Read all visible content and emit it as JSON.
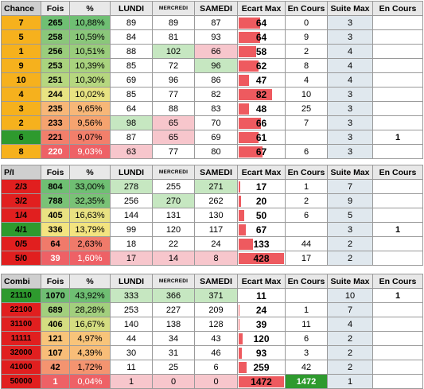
{
  "colors": {
    "accent_red": "#ee5a5f",
    "suite_max_bg": "#e0e8ee",
    "header_bg": "#e8e8e8"
  },
  "tables": [
    {
      "name": "chance",
      "headers": [
        "Chance",
        "Fois",
        "%",
        "LUNDI",
        "MERCREDI",
        "SAMEDI",
        "Ecart Max",
        "En Cours",
        "Suite Max",
        "En Cours"
      ],
      "rows": [
        {
          "label": "7",
          "fois": "265",
          "pct": "10,88%",
          "lundi": "89",
          "mercredi": "89",
          "samedi": "87",
          "ecart_max": "64",
          "ecart_level": 0.45,
          "en_cours": "0",
          "suite_max": "3",
          "en_cours2": ""
        },
        {
          "label": "5",
          "fois": "258",
          "pct": "10,59%",
          "lundi": "84",
          "mercredi": "81",
          "samedi": "93",
          "ecart_max": "64",
          "ecart_level": 0.45,
          "en_cours": "9",
          "suite_max": "3",
          "en_cours2": ""
        },
        {
          "label": "1",
          "fois": "256",
          "pct": "10,51%",
          "lundi": "88",
          "mercredi": "102",
          "samedi": "66",
          "ecart_max": "58",
          "ecart_level": 0.37,
          "en_cours": "2",
          "suite_max": "4",
          "en_cours2": ""
        },
        {
          "label": "9",
          "fois": "253",
          "pct": "10,39%",
          "lundi": "85",
          "mercredi": "72",
          "samedi": "96",
          "ecart_max": "62",
          "ecart_level": 0.42,
          "en_cours": "8",
          "suite_max": "4",
          "en_cours2": ""
        },
        {
          "label": "10",
          "fois": "251",
          "pct": "10,30%",
          "lundi": "69",
          "mercredi": "96",
          "samedi": "86",
          "ecart_max": "47",
          "ecart_level": 0.22,
          "en_cours": "4",
          "suite_max": "4",
          "en_cours2": ""
        },
        {
          "label": "4",
          "fois": "244",
          "pct": "10,02%",
          "lundi": "85",
          "mercredi": "77",
          "samedi": "82",
          "ecart_max": "82",
          "ecart_level": 0.72,
          "en_cours": "10",
          "suite_max": "3",
          "en_cours2": ""
        },
        {
          "label": "3",
          "fois": "235",
          "pct": "9,65%",
          "lundi": "64",
          "mercredi": "88",
          "samedi": "83",
          "ecart_max": "48",
          "ecart_level": 0.22,
          "en_cours": "25",
          "suite_max": "3",
          "en_cours2": ""
        },
        {
          "label": "2",
          "fois": "233",
          "pct": "9,56%",
          "lundi": "98",
          "mercredi": "65",
          "samedi": "70",
          "ecart_max": "66",
          "ecart_level": 0.48,
          "en_cours": "7",
          "suite_max": "3",
          "en_cours2": ""
        },
        {
          "label": "6",
          "fois": "221",
          "pct": "9,07%",
          "lundi": "87",
          "mercredi": "65",
          "samedi": "69",
          "ecart_max": "61",
          "ecart_level": 0.42,
          "en_cours": "",
          "suite_max": "3",
          "en_cours2": "1"
        },
        {
          "label": "8",
          "fois": "220",
          "pct": "9,03%",
          "lundi": "63",
          "mercredi": "77",
          "samedi": "80",
          "ecart_max": "67",
          "ecart_level": 0.5,
          "en_cours": "6",
          "suite_max": "3",
          "en_cours2": ""
        }
      ]
    },
    {
      "name": "pi",
      "headers": [
        "P/I",
        "Fois",
        "%",
        "LUNDI",
        "MERCREDI",
        "SAMEDI",
        "Ecart Max",
        "En Cours",
        "Suite Max",
        "En Cours"
      ],
      "rows": [
        {
          "label": "2/3",
          "fois": "804",
          "pct": "33,00%",
          "lundi": "278",
          "mercredi": "255",
          "samedi": "271",
          "ecart_max": "17",
          "ecart_level": 0.04,
          "en_cours": "1",
          "suite_max": "7",
          "en_cours2": ""
        },
        {
          "label": "3/2",
          "fois": "788",
          "pct": "32,35%",
          "lundi": "256",
          "mercredi": "270",
          "samedi": "262",
          "ecart_max": "20",
          "ecart_level": 0.05,
          "en_cours": "2",
          "suite_max": "9",
          "en_cours2": ""
        },
        {
          "label": "1/4",
          "fois": "405",
          "pct": "16,63%",
          "lundi": "144",
          "mercredi": "131",
          "samedi": "130",
          "ecart_max": "50",
          "ecart_level": 0.12,
          "en_cours": "6",
          "suite_max": "5",
          "en_cours2": ""
        },
        {
          "label": "4/1",
          "fois": "336",
          "pct": "13,79%",
          "lundi": "99",
          "mercredi": "120",
          "samedi": "117",
          "ecart_max": "67",
          "ecart_level": 0.16,
          "en_cours": "",
          "suite_max": "3",
          "en_cours2": "1"
        },
        {
          "label": "0/5",
          "fois": "64",
          "pct": "2,63%",
          "lundi": "18",
          "mercredi": "22",
          "samedi": "24",
          "ecart_max": "133",
          "ecart_level": 0.31,
          "en_cours": "44",
          "suite_max": "2",
          "en_cours2": ""
        },
        {
          "label": "5/0",
          "fois": "39",
          "pct": "1,60%",
          "lundi": "17",
          "mercredi": "14",
          "samedi": "8",
          "ecart_max": "428",
          "ecart_level": 1,
          "en_cours": "17",
          "suite_max": "2",
          "en_cours2": ""
        }
      ]
    },
    {
      "name": "combi",
      "headers": [
        "Combi",
        "Fois",
        "%",
        "LUNDI",
        "MERCREDI",
        "SAMEDI",
        "Ecart Max",
        "En Cours",
        "Suite Max",
        "En Cours"
      ],
      "rows": [
        {
          "label": "21110",
          "fois": "1070",
          "pct": "43,92%",
          "lundi": "333",
          "mercredi": "366",
          "samedi": "371",
          "ecart_max": "11",
          "ecart_level": 0,
          "en_cours": "",
          "suite_max": "10",
          "en_cours2": "1"
        },
        {
          "label": "22100",
          "fois": "689",
          "pct": "28,28%",
          "lundi": "253",
          "mercredi": "227",
          "samedi": "209",
          "ecart_max": "24",
          "ecart_level": 0.01,
          "en_cours": "1",
          "suite_max": "7",
          "en_cours2": ""
        },
        {
          "label": "31100",
          "fois": "406",
          "pct": "16,67%",
          "lundi": "140",
          "mercredi": "138",
          "samedi": "128",
          "ecart_max": "39",
          "ecart_level": 0.02,
          "en_cours": "11",
          "suite_max": "4",
          "en_cours2": ""
        },
        {
          "label": "11111",
          "fois": "121",
          "pct": "4,97%",
          "lundi": "44",
          "mercredi": "34",
          "samedi": "43",
          "ecart_max": "120",
          "ecart_level": 0.08,
          "en_cours": "6",
          "suite_max": "2",
          "en_cours2": ""
        },
        {
          "label": "32000",
          "fois": "107",
          "pct": "4,39%",
          "lundi": "30",
          "mercredi": "31",
          "samedi": "46",
          "ecart_max": "93",
          "ecart_level": 0.06,
          "en_cours": "3",
          "suite_max": "2",
          "en_cours2": ""
        },
        {
          "label": "41000",
          "fois": "42",
          "pct": "1,72%",
          "lundi": "11",
          "mercredi": "25",
          "samedi": "6",
          "ecart_max": "259",
          "ecart_level": 0.17,
          "en_cours": "42",
          "suite_max": "2",
          "en_cours2": ""
        },
        {
          "label": "50000",
          "fois": "1",
          "pct": "0,04%",
          "lundi": "1",
          "mercredi": "0",
          "samedi": "0",
          "ecart_max": "1472",
          "ecart_level": 1,
          "en_cours": "1472",
          "suite_max": "1",
          "en_cours2": ""
        }
      ]
    }
  ]
}
